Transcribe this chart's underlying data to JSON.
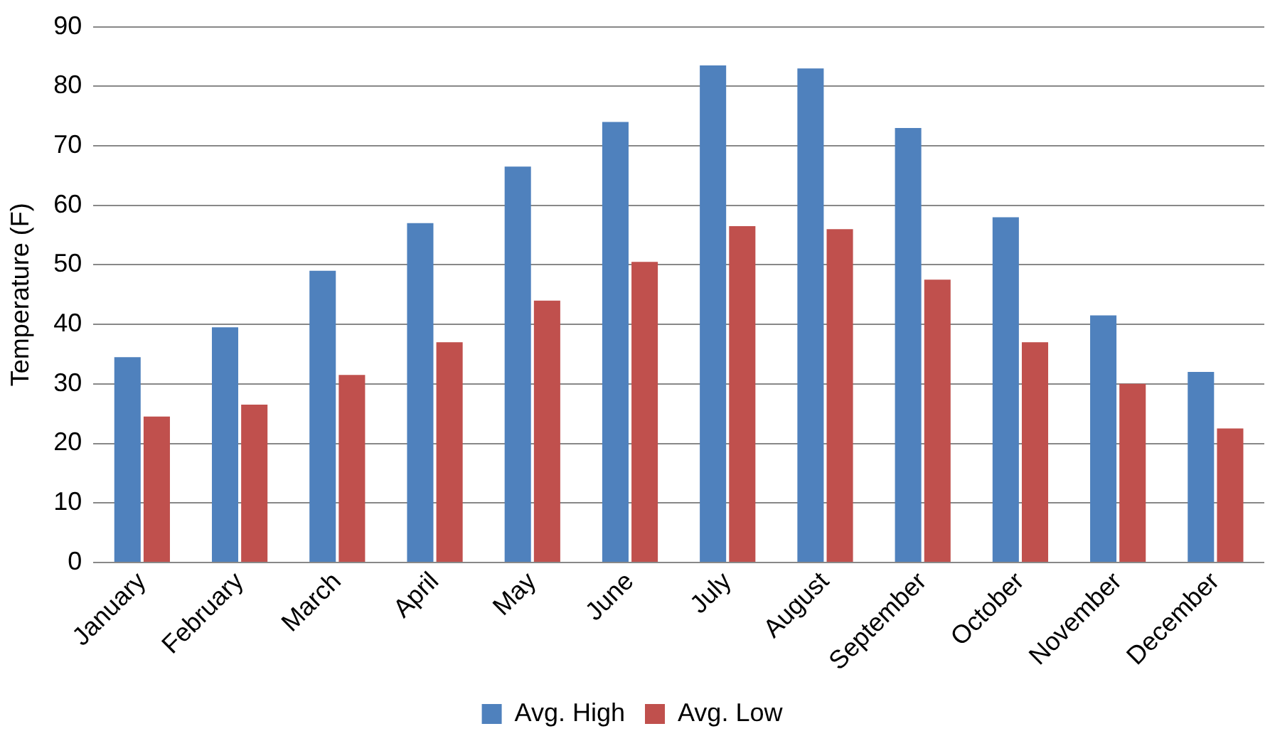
{
  "chart_data": {
    "type": "bar",
    "ylabel": "Temperature (F)",
    "categories": [
      "January",
      "February",
      "March",
      "April",
      "May",
      "June",
      "July",
      "August",
      "September",
      "October",
      "November",
      "December"
    ],
    "series": [
      {
        "name": "Avg. High",
        "color": "#4f81bd",
        "values": [
          34.5,
          39.5,
          49,
          57,
          66.5,
          74,
          83.5,
          83,
          73,
          58,
          41.5,
          32
        ]
      },
      {
        "name": "Avg. Low",
        "color": "#c0504d",
        "values": [
          24.5,
          26.5,
          31.5,
          37,
          44,
          50.5,
          56.5,
          56,
          47.5,
          37,
          30,
          22.5
        ]
      }
    ],
    "ylim": [
      0,
      90
    ],
    "yticks": [
      0,
      10,
      20,
      30,
      40,
      50,
      60,
      70,
      80,
      90
    ],
    "grid": "y",
    "legend": "bottom"
  }
}
